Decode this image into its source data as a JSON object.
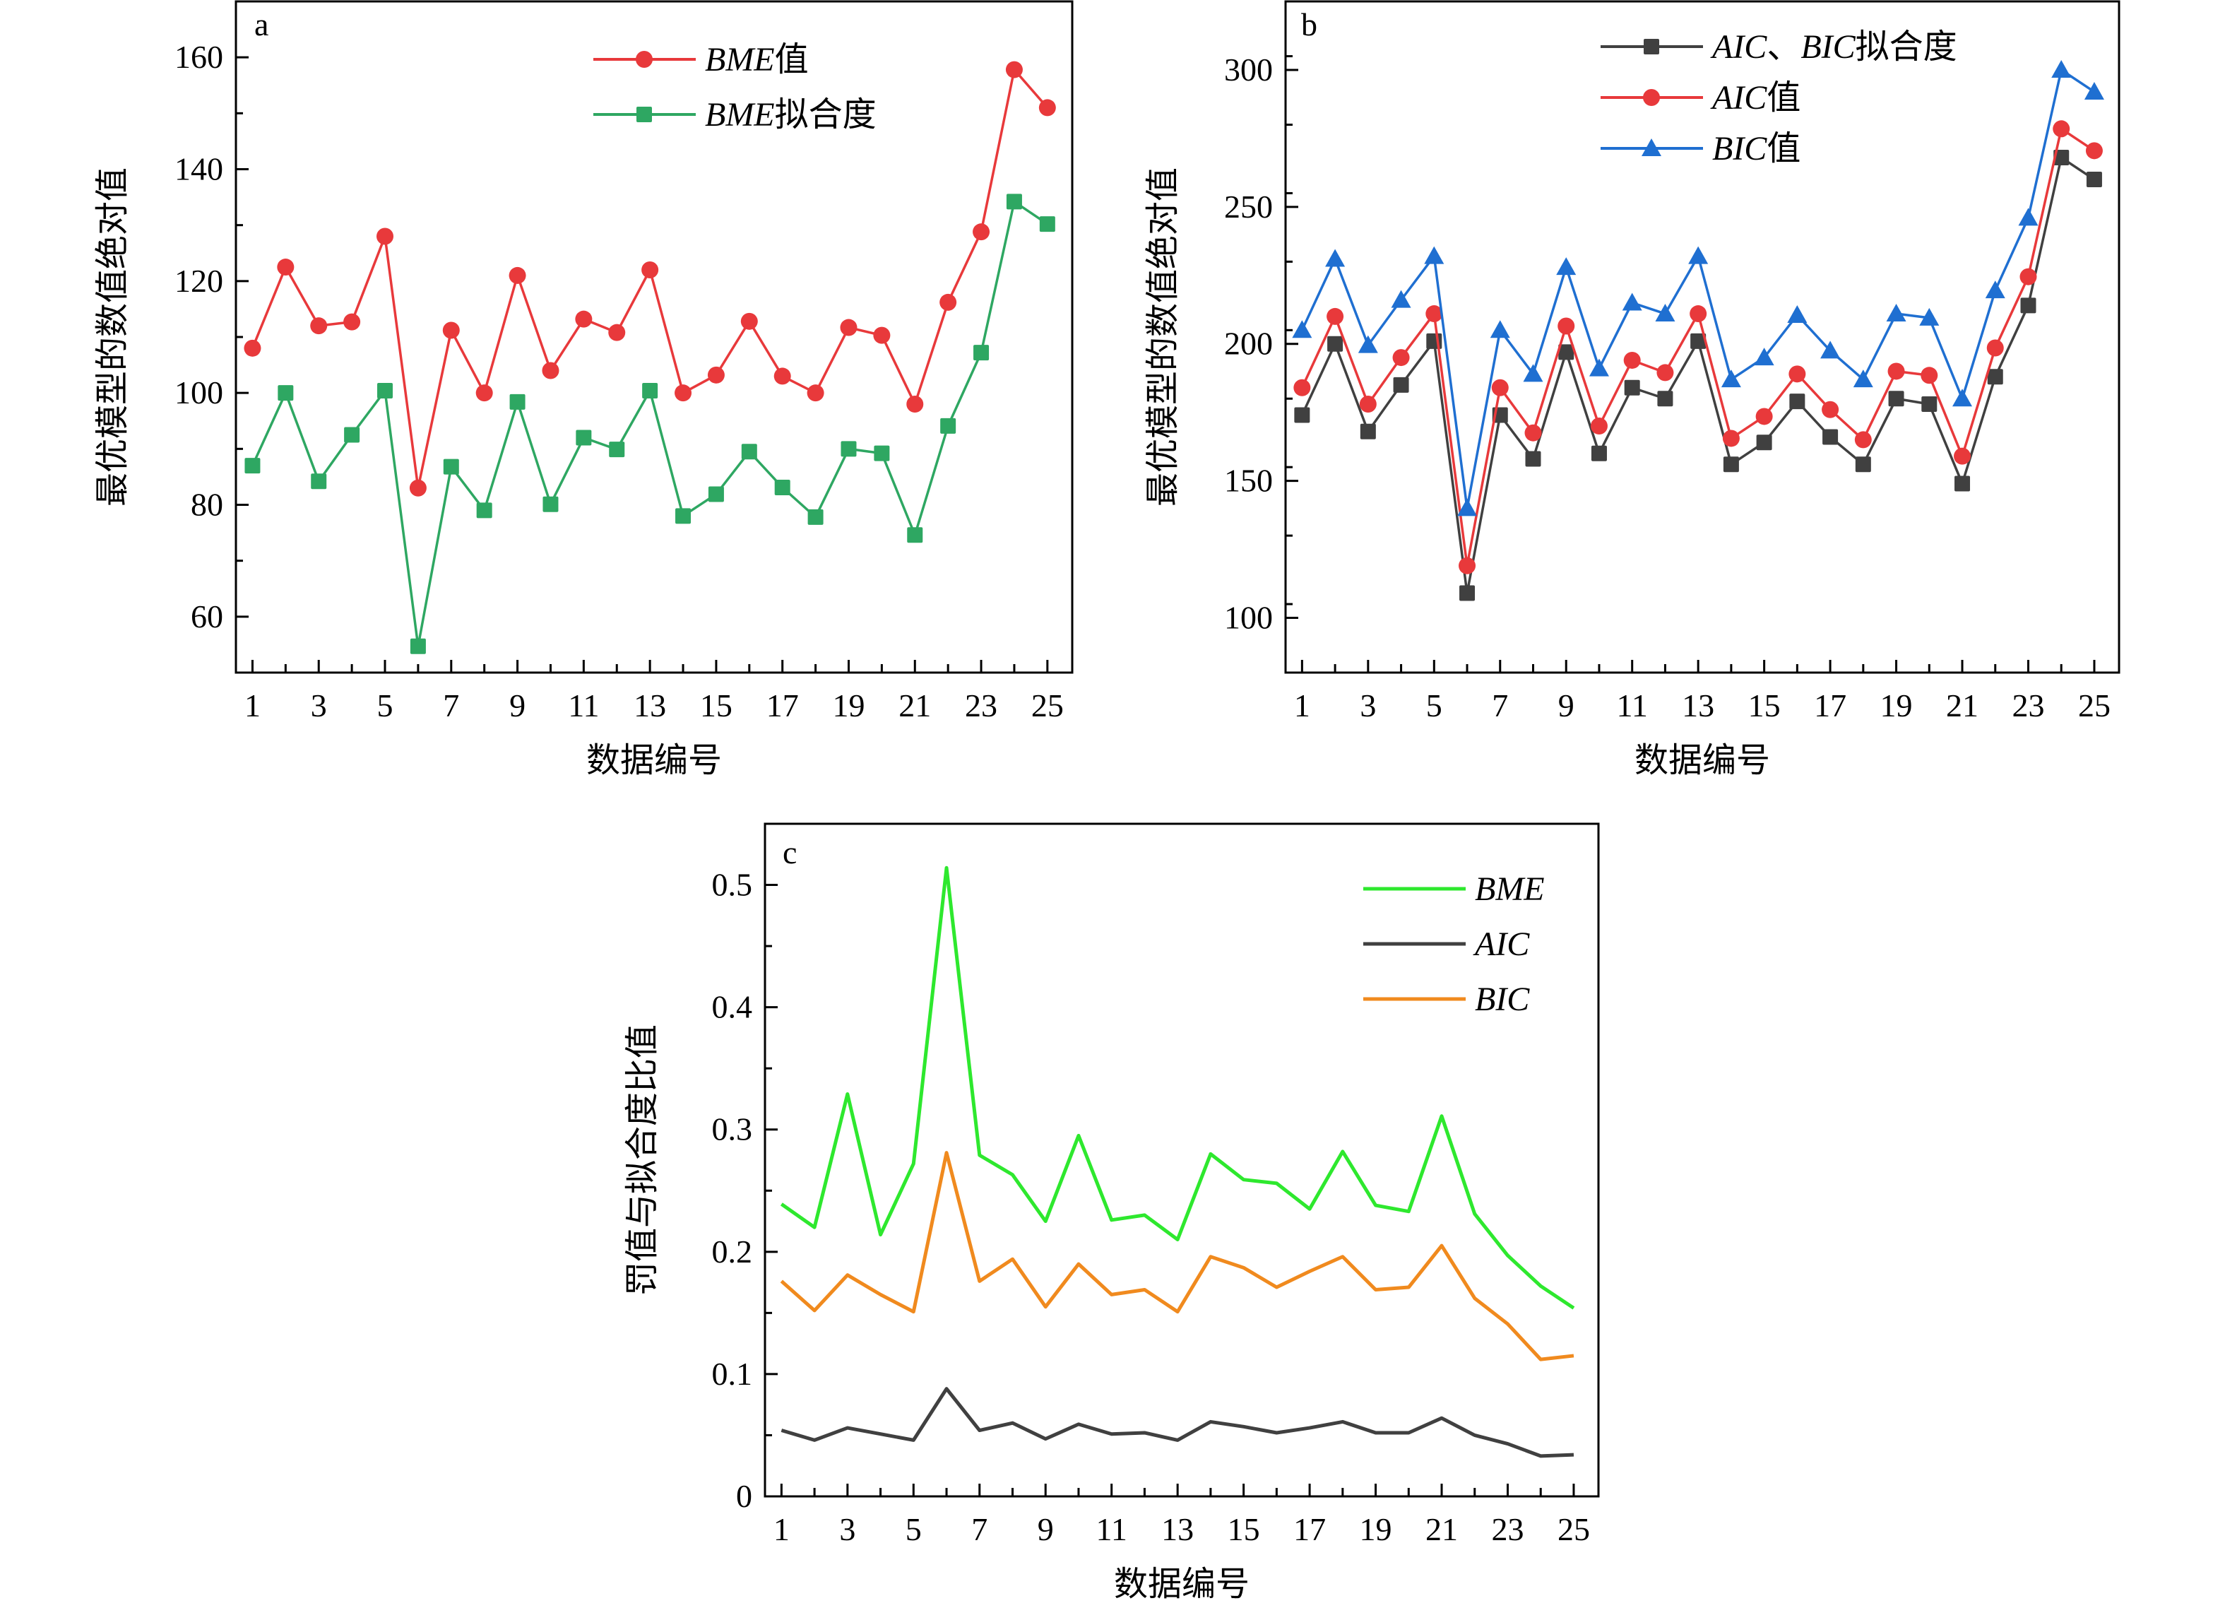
{
  "chart_data": [
    {
      "id": "a",
      "type": "line",
      "panel_label": "a",
      "xlabel": "数据编号",
      "ylabel": "最优模型的数值绝对值",
      "x": [
        1,
        2,
        3,
        4,
        5,
        6,
        7,
        8,
        9,
        10,
        11,
        12,
        13,
        14,
        15,
        16,
        17,
        18,
        19,
        20,
        21,
        22,
        23,
        24,
        25
      ],
      "xticks": [
        1,
        3,
        5,
        7,
        9,
        11,
        13,
        15,
        17,
        19,
        21,
        23,
        25
      ],
      "ylim": [
        50,
        170
      ],
      "yticks": [
        60,
        80,
        100,
        120,
        140,
        160
      ],
      "yminor": 10,
      "legend_position": "top-right",
      "series": [
        {
          "name": "BME值",
          "name_italic": "BME",
          "name_rest": "值",
          "marker": "circle",
          "color": "#e8393b",
          "values": [
            108,
            122.5,
            112,
            112.7,
            128,
            83,
            111.2,
            100,
            121,
            104,
            113.2,
            110.8,
            122,
            100,
            103.2,
            112.8,
            103,
            100,
            111.7,
            110.3,
            98,
            116.2,
            128.8,
            157.8,
            151
          ]
        },
        {
          "name": "BME拟合度",
          "name_italic": "BME",
          "name_rest": "拟合度",
          "marker": "square",
          "color": "#2ea762",
          "values": [
            87,
            100,
            84.2,
            92.5,
            100.4,
            54.7,
            86.8,
            79,
            98.4,
            80.1,
            92,
            89.9,
            100.4,
            78,
            81.9,
            89.5,
            83.1,
            77.8,
            90,
            89.2,
            74.6,
            94.1,
            107.2,
            134.2,
            130.2
          ]
        }
      ]
    },
    {
      "id": "b",
      "type": "line",
      "panel_label": "b",
      "xlabel": "数据编号",
      "ylabel": "最优模型的数值绝对值",
      "x": [
        1,
        2,
        3,
        4,
        5,
        6,
        7,
        8,
        9,
        10,
        11,
        12,
        13,
        14,
        15,
        16,
        17,
        18,
        19,
        20,
        21,
        22,
        23,
        24,
        25
      ],
      "xticks": [
        1,
        3,
        5,
        7,
        9,
        11,
        13,
        15,
        17,
        19,
        21,
        23,
        25
      ],
      "ylim": [
        80,
        325
      ],
      "yticks": [
        100,
        150,
        200,
        250,
        300
      ],
      "yminor": 25,
      "legend_position": "top-right",
      "series": [
        {
          "name": "AIC、BIC拟合度",
          "name_italic": "AIC",
          "name_rest": "、",
          "name_italic2": "BIC",
          "name_rest2": "拟合度",
          "marker": "square",
          "color": "#404040",
          "values": [
            174,
            200,
            168,
            185,
            201,
            109,
            174,
            158,
            197,
            160,
            184,
            180,
            201,
            156,
            164,
            179,
            166,
            156,
            180,
            178,
            149,
            188,
            214,
            268,
            260
          ]
        },
        {
          "name": "AIC值",
          "name_italic": "AIC",
          "name_rest": "值",
          "marker": "circle",
          "color": "#e8393b",
          "values": [
            184,
            210,
            178,
            195,
            211,
            119,
            184,
            167.5,
            206.5,
            170,
            194,
            189.5,
            211,
            165.5,
            173.5,
            189,
            176,
            165,
            190,
            188.5,
            159,
            198.5,
            224.5,
            278.5,
            270.5
          ]
        },
        {
          "name": "BIC值",
          "name_italic": "BIC",
          "name_rest": "值",
          "marker": "triangle",
          "color": "#1f6fd1",
          "values": [
            205,
            231,
            199.5,
            216,
            232,
            140,
            205,
            189,
            228,
            191,
            215,
            211,
            232,
            187,
            195,
            210.5,
            197.5,
            187,
            211,
            209.5,
            180,
            219.5,
            246,
            300,
            292
          ]
        }
      ]
    },
    {
      "id": "c",
      "type": "line",
      "panel_label": "c",
      "xlabel": "数据编号",
      "ylabel": "罚值与拟合度比值",
      "x": [
        1,
        2,
        3,
        4,
        5,
        6,
        7,
        8,
        9,
        10,
        11,
        12,
        13,
        14,
        15,
        16,
        17,
        18,
        19,
        20,
        21,
        22,
        23,
        24,
        25
      ],
      "xticks": [
        1,
        3,
        5,
        7,
        9,
        11,
        13,
        15,
        17,
        19,
        21,
        23,
        25
      ],
      "ylim": [
        0,
        0.55
      ],
      "yticks": [
        0,
        0.1,
        0.2,
        0.3,
        0.4,
        0.5
      ],
      "ytick_labels": [
        "0",
        "0.1",
        "0.2",
        "0.3",
        "0.4",
        "0.5"
      ],
      "yminor": 0.05,
      "legend_position": "top-right",
      "series": [
        {
          "name": "BME",
          "name_italic": "BME",
          "name_rest": "",
          "marker": "none",
          "color": "#2ee82e",
          "values": [
            0.239,
            0.22,
            0.329,
            0.214,
            0.272,
            0.514,
            0.279,
            0.263,
            0.225,
            0.295,
            0.226,
            0.23,
            0.21,
            0.28,
            0.259,
            0.256,
            0.235,
            0.282,
            0.238,
            0.233,
            0.311,
            0.231,
            0.197,
            0.172,
            0.154
          ]
        },
        {
          "name": "AIC",
          "name_italic": "AIC",
          "name_rest": "",
          "marker": "none",
          "color": "#404040",
          "values": [
            0.054,
            0.046,
            0.056,
            0.051,
            0.046,
            0.088,
            0.054,
            0.06,
            0.047,
            0.059,
            0.051,
            0.052,
            0.046,
            0.061,
            0.057,
            0.052,
            0.056,
            0.061,
            0.052,
            0.052,
            0.064,
            0.05,
            0.043,
            0.033,
            0.034
          ]
        },
        {
          "name": "BIC",
          "name_italic": "BIC",
          "name_rest": "",
          "marker": "none",
          "color": "#f08a1e",
          "values": [
            0.176,
            0.152,
            0.181,
            0.165,
            0.151,
            0.281,
            0.176,
            0.194,
            0.155,
            0.19,
            0.165,
            0.169,
            0.151,
            0.196,
            0.187,
            0.171,
            0.184,
            0.196,
            0.169,
            0.171,
            0.205,
            0.162,
            0.141,
            0.112,
            0.115
          ]
        }
      ]
    }
  ]
}
